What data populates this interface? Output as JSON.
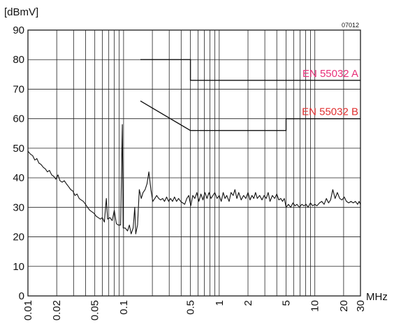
{
  "chart_data": {
    "type": "line",
    "figure_id": "07012",
    "ylabel": "[dBmV]",
    "xlabel": "MHz",
    "x_scale": "log",
    "xlim": [
      0.01,
      30
    ],
    "ylim": [
      0,
      90
    ],
    "grid": true,
    "x_ticks": [
      {
        "value": 0.01,
        "label": "0.01"
      },
      {
        "value": 0.02,
        "label": "0.02"
      },
      {
        "value": 0.05,
        "label": "0.05"
      },
      {
        "value": 0.1,
        "label": "0.1"
      },
      {
        "value": 0.5,
        "label": "0.5"
      },
      {
        "value": 1,
        "label": "1"
      },
      {
        "value": 2,
        "label": "2"
      },
      {
        "value": 5,
        "label": "5"
      },
      {
        "value": 10,
        "label": "10"
      },
      {
        "value": 20,
        "label": "20"
      },
      {
        "value": 30,
        "label": "30"
      }
    ],
    "y_ticks": [
      {
        "value": 0,
        "label": "0"
      },
      {
        "value": 10,
        "label": "10"
      },
      {
        "value": 20,
        "label": "20"
      },
      {
        "value": 30,
        "label": "30"
      },
      {
        "value": 40,
        "label": "40"
      },
      {
        "value": 50,
        "label": "50"
      },
      {
        "value": 60,
        "label": "60"
      },
      {
        "value": 70,
        "label": "70"
      },
      {
        "value": 80,
        "label": "80"
      },
      {
        "value": 90,
        "label": "90"
      }
    ],
    "limit_lines": [
      {
        "label": "EN 55032 A",
        "color": "#e8307a",
        "points": [
          [
            0.15,
            80
          ],
          [
            0.5,
            80
          ],
          [
            0.5,
            73
          ],
          [
            30,
            73
          ]
        ]
      },
      {
        "label": "EN 55032 B",
        "color": "#e03030",
        "points": [
          [
            0.15,
            66
          ],
          [
            0.5,
            56
          ],
          [
            5,
            56
          ],
          [
            5,
            60
          ],
          [
            30,
            60
          ]
        ]
      }
    ],
    "series": [
      {
        "color": "#111111",
        "points": [
          [
            0.01,
            49
          ],
          [
            0.0106,
            48
          ],
          [
            0.0112,
            47.5
          ],
          [
            0.0118,
            46
          ],
          [
            0.0124,
            46.5
          ],
          [
            0.013,
            45
          ],
          [
            0.0137,
            44.5
          ],
          [
            0.0145,
            43.5
          ],
          [
            0.0152,
            43
          ],
          [
            0.016,
            42
          ],
          [
            0.0168,
            42.5
          ],
          [
            0.0177,
            41
          ],
          [
            0.0186,
            40.5
          ],
          [
            0.0196,
            39.5
          ],
          [
            0.0206,
            41
          ],
          [
            0.0216,
            39
          ],
          [
            0.0228,
            38.5
          ],
          [
            0.024,
            39
          ],
          [
            0.0252,
            38
          ],
          [
            0.0266,
            37
          ],
          [
            0.028,
            36
          ],
          [
            0.0295,
            35.5
          ],
          [
            0.031,
            34
          ],
          [
            0.0326,
            34.5
          ],
          [
            0.0343,
            33
          ],
          [
            0.036,
            32.5
          ],
          [
            0.038,
            32
          ],
          [
            0.04,
            31
          ],
          [
            0.042,
            30
          ],
          [
            0.0443,
            29
          ],
          [
            0.0466,
            28.5
          ],
          [
            0.049,
            28
          ],
          [
            0.0516,
            27
          ],
          [
            0.0543,
            26.5
          ],
          [
            0.0572,
            26
          ],
          [
            0.06,
            26.5
          ],
          [
            0.063,
            25
          ],
          [
            0.066,
            33
          ],
          [
            0.068,
            26
          ],
          [
            0.072,
            26.5
          ],
          [
            0.076,
            25.5
          ],
          [
            0.08,
            29
          ],
          [
            0.084,
            24.5
          ],
          [
            0.088,
            24
          ],
          [
            0.093,
            24
          ],
          [
            0.097,
            58
          ],
          [
            0.099,
            23
          ],
          [
            0.104,
            23
          ],
          [
            0.11,
            22
          ],
          [
            0.115,
            24
          ],
          [
            0.12,
            21
          ],
          [
            0.126,
            23
          ],
          [
            0.131,
            30
          ],
          [
            0.134,
            21
          ],
          [
            0.14,
            24
          ],
          [
            0.146,
            36
          ],
          [
            0.153,
            33
          ],
          [
            0.16,
            35
          ],
          [
            0.168,
            36
          ],
          [
            0.176,
            38
          ],
          [
            0.184,
            42
          ],
          [
            0.193,
            36
          ],
          [
            0.202,
            32
          ],
          [
            0.212,
            33
          ],
          [
            0.222,
            34
          ],
          [
            0.233,
            33
          ],
          [
            0.244,
            32.5
          ],
          [
            0.256,
            33
          ],
          [
            0.268,
            32
          ],
          [
            0.282,
            33.5
          ],
          [
            0.296,
            32
          ],
          [
            0.31,
            33
          ],
          [
            0.325,
            32
          ],
          [
            0.341,
            33.5
          ],
          [
            0.358,
            32
          ],
          [
            0.376,
            33
          ],
          [
            0.395,
            32
          ],
          [
            0.415,
            31.5
          ],
          [
            0.436,
            31
          ],
          [
            0.458,
            33
          ],
          [
            0.48,
            34
          ],
          [
            0.504,
            30.5
          ],
          [
            0.53,
            34
          ],
          [
            0.556,
            33
          ],
          [
            0.584,
            35
          ],
          [
            0.613,
            32
          ],
          [
            0.644,
            34.5
          ],
          [
            0.676,
            32.5
          ],
          [
            0.71,
            35
          ],
          [
            0.745,
            33
          ],
          [
            0.782,
            35
          ],
          [
            0.82,
            33
          ],
          [
            0.86,
            34
          ],
          [
            0.9,
            35
          ],
          [
            0.95,
            33
          ],
          [
            1.0,
            34
          ],
          [
            1.05,
            32
          ],
          [
            1.1,
            35
          ],
          [
            1.15,
            33
          ],
          [
            1.2,
            34
          ],
          [
            1.27,
            32
          ],
          [
            1.33,
            35
          ],
          [
            1.4,
            34
          ],
          [
            1.46,
            36
          ],
          [
            1.53,
            33
          ],
          [
            1.6,
            35
          ],
          [
            1.7,
            32.5
          ],
          [
            1.8,
            34
          ],
          [
            1.9,
            33
          ],
          [
            2.0,
            35
          ],
          [
            2.1,
            32.5
          ],
          [
            2.2,
            34
          ],
          [
            2.3,
            33
          ],
          [
            2.4,
            35
          ],
          [
            2.5,
            33
          ],
          [
            2.65,
            34
          ],
          [
            2.8,
            32.5
          ],
          [
            2.95,
            34
          ],
          [
            3.1,
            33
          ],
          [
            3.25,
            35
          ],
          [
            3.4,
            32
          ],
          [
            3.6,
            34
          ],
          [
            3.8,
            33
          ],
          [
            4.0,
            34.5
          ],
          [
            4.2,
            32.5
          ],
          [
            4.4,
            33
          ],
          [
            4.6,
            32
          ],
          [
            4.8,
            33
          ],
          [
            4.9,
            31.5
          ],
          [
            5.0,
            30
          ],
          [
            5.3,
            31
          ],
          [
            5.6,
            30
          ],
          [
            5.9,
            31.5
          ],
          [
            6.2,
            30.5
          ],
          [
            6.5,
            31
          ],
          [
            6.9,
            30
          ],
          [
            7.3,
            31
          ],
          [
            7.7,
            30.5
          ],
          [
            8.1,
            31
          ],
          [
            8.5,
            30
          ],
          [
            9.0,
            31.5
          ],
          [
            9.5,
            30.5
          ],
          [
            10.0,
            31
          ],
          [
            10.5,
            30.5
          ],
          [
            11.2,
            31.5
          ],
          [
            11.8,
            32
          ],
          [
            12.5,
            31
          ],
          [
            13.2,
            33
          ],
          [
            13.9,
            31.5
          ],
          [
            14.6,
            32.5
          ],
          [
            15.4,
            36
          ],
          [
            16.3,
            33
          ],
          [
            17.2,
            35
          ],
          [
            18.2,
            33
          ],
          [
            19.2,
            32.5
          ],
          [
            20.3,
            33.5
          ],
          [
            21.4,
            32
          ],
          [
            22.6,
            31.5
          ],
          [
            23.9,
            32
          ],
          [
            25.2,
            31.5
          ],
          [
            26.6,
            32
          ],
          [
            28.0,
            31
          ],
          [
            29.0,
            32
          ],
          [
            30.0,
            31
          ]
        ]
      }
    ]
  }
}
